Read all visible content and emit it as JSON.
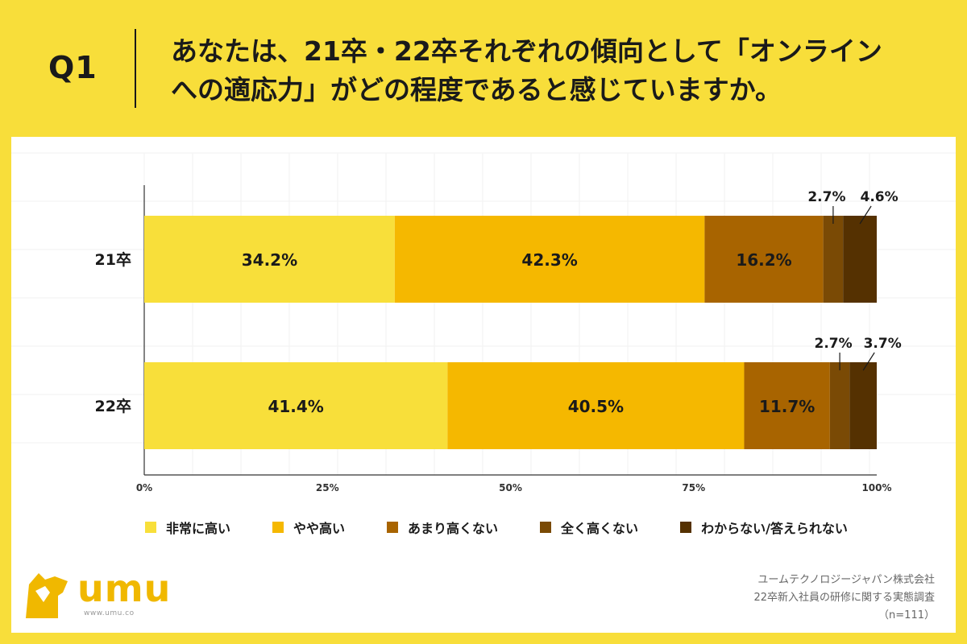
{
  "header": {
    "q_label": "Q1",
    "question_line1": "あなたは、21卒・22卒それぞれの傾向として「オンライン",
    "question_line2": "への適応力」がどの程度であると感じていますか。"
  },
  "chart_data": {
    "type": "bar",
    "orientation": "horizontal",
    "stacked": true,
    "categories": [
      "21卒",
      "22卒"
    ],
    "series": [
      {
        "name": "非常に高い",
        "values": [
          34.2,
          41.4
        ],
        "color": "#f8df3a"
      },
      {
        "name": "やや高い",
        "values": [
          42.3,
          40.5
        ],
        "color": "#f5b800"
      },
      {
        "name": "あまり高くない",
        "values": [
          16.2,
          11.7
        ],
        "color": "#a86400"
      },
      {
        "name": "全く高くない",
        "values": [
          2.7,
          2.7
        ],
        "color": "#7a4a05"
      },
      {
        "name": "わからない/答えられない",
        "values": [
          4.6,
          3.7
        ],
        "color": "#553101"
      }
    ],
    "value_labels": [
      [
        "34.2%",
        "42.3%",
        "16.2%",
        "2.7%",
        "4.6%"
      ],
      [
        "41.4%",
        "40.5%",
        "11.7%",
        "2.7%",
        "3.7%"
      ]
    ],
    "xlim": [
      0,
      100
    ],
    "xticks": [
      "0%",
      "25%",
      "50%",
      "75%",
      "100%"
    ],
    "legend_position": "bottom",
    "grid": true
  },
  "footer": {
    "brand": "umu",
    "url": "www.umu.co",
    "source_line1": "ユームテクノロジージャパン株式会社",
    "source_line2": "22卒新入社員の研修に関する実態調査",
    "source_line3": "（n=111）"
  }
}
